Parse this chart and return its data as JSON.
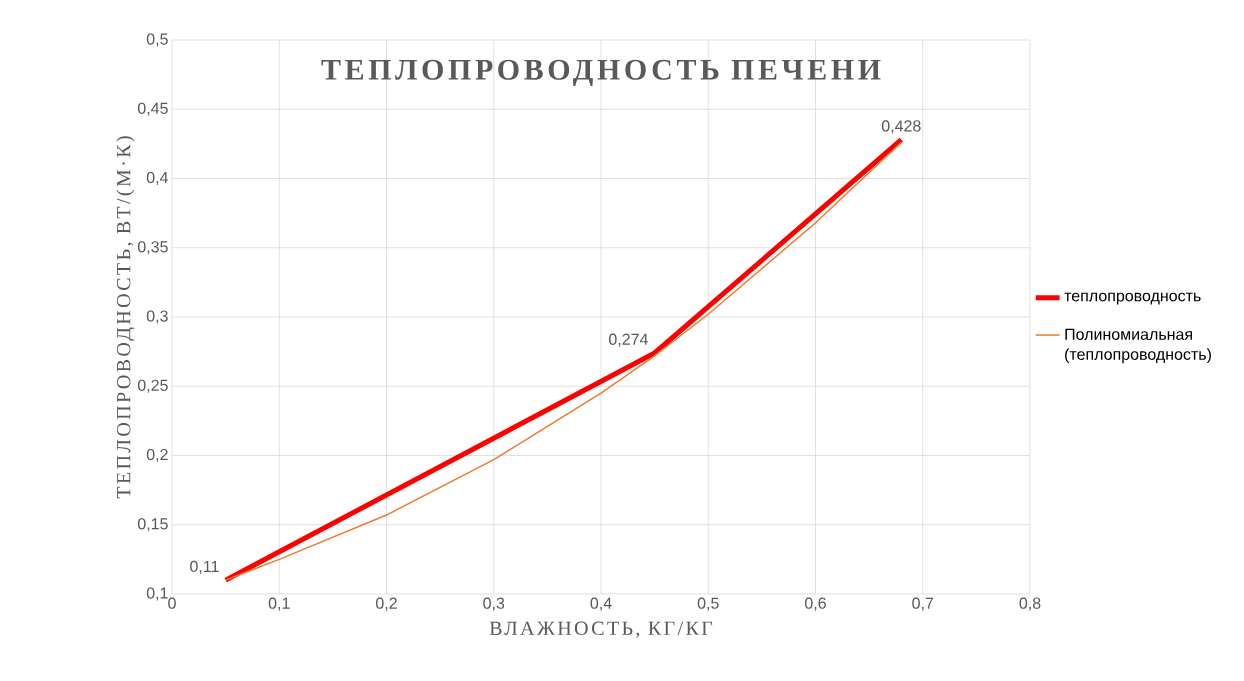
{
  "chart_data": {
    "type": "line",
    "title": "ТЕПЛОПРОВОДНОСТЬ ПЕЧЕНИ",
    "xlabel": "ВЛАЖНОСТЬ, КГ/КГ",
    "ylabel": "ТЕПЛОПРОВОДНОСТЬ, ВТ/(М·К)",
    "xlim": [
      0,
      0.8
    ],
    "ylim": [
      0.1,
      0.5
    ],
    "xticks": [
      0,
      {
        "value": 0.1,
        "label": "0,1"
      },
      {
        "value": 0.2,
        "label": "0,2"
      },
      {
        "value": 0.3,
        "label": "0,3"
      },
      {
        "value": 0.4,
        "label": "0,4"
      },
      {
        "value": 0.5,
        "label": "0,5"
      },
      {
        "value": 0.6,
        "label": "0,6"
      },
      {
        "value": 0.7,
        "label": "0,7"
      },
      {
        "value": 0.8,
        "label": "0,8"
      }
    ],
    "yticks": [
      {
        "value": 0.1,
        "label": "0,1"
      },
      {
        "value": 0.15,
        "label": "0,15"
      },
      {
        "value": 0.2,
        "label": "0,2"
      },
      {
        "value": 0.25,
        "label": "0,25"
      },
      {
        "value": 0.3,
        "label": "0,3"
      },
      {
        "value": 0.35,
        "label": "0,35"
      },
      {
        "value": 0.4,
        "label": "0,4"
      },
      {
        "value": 0.45,
        "label": "0,45"
      },
      {
        "value": 0.5,
        "label": "0,5"
      }
    ],
    "grid": true,
    "legend": "right",
    "marker": "none",
    "series": [
      {
        "name": "теплопроводность",
        "color": "#ff0000",
        "x": [
          0.05,
          0.45,
          0.68
        ],
        "values": [
          0.11,
          0.274,
          0.428
        ],
        "value_labels": [
          "0,11",
          "0,274",
          "0,428"
        ]
      },
      {
        "name": "Полиномиальная (теплопроводность)",
        "color": "#ed7d31",
        "x": [
          0.05,
          0.1,
          0.2,
          0.3,
          0.4,
          0.45,
          0.5,
          0.6,
          0.68
        ],
        "values": [
          0.11,
          0.125,
          0.157,
          0.197,
          0.245,
          0.272,
          0.302,
          0.368,
          0.426
        ]
      }
    ]
  }
}
